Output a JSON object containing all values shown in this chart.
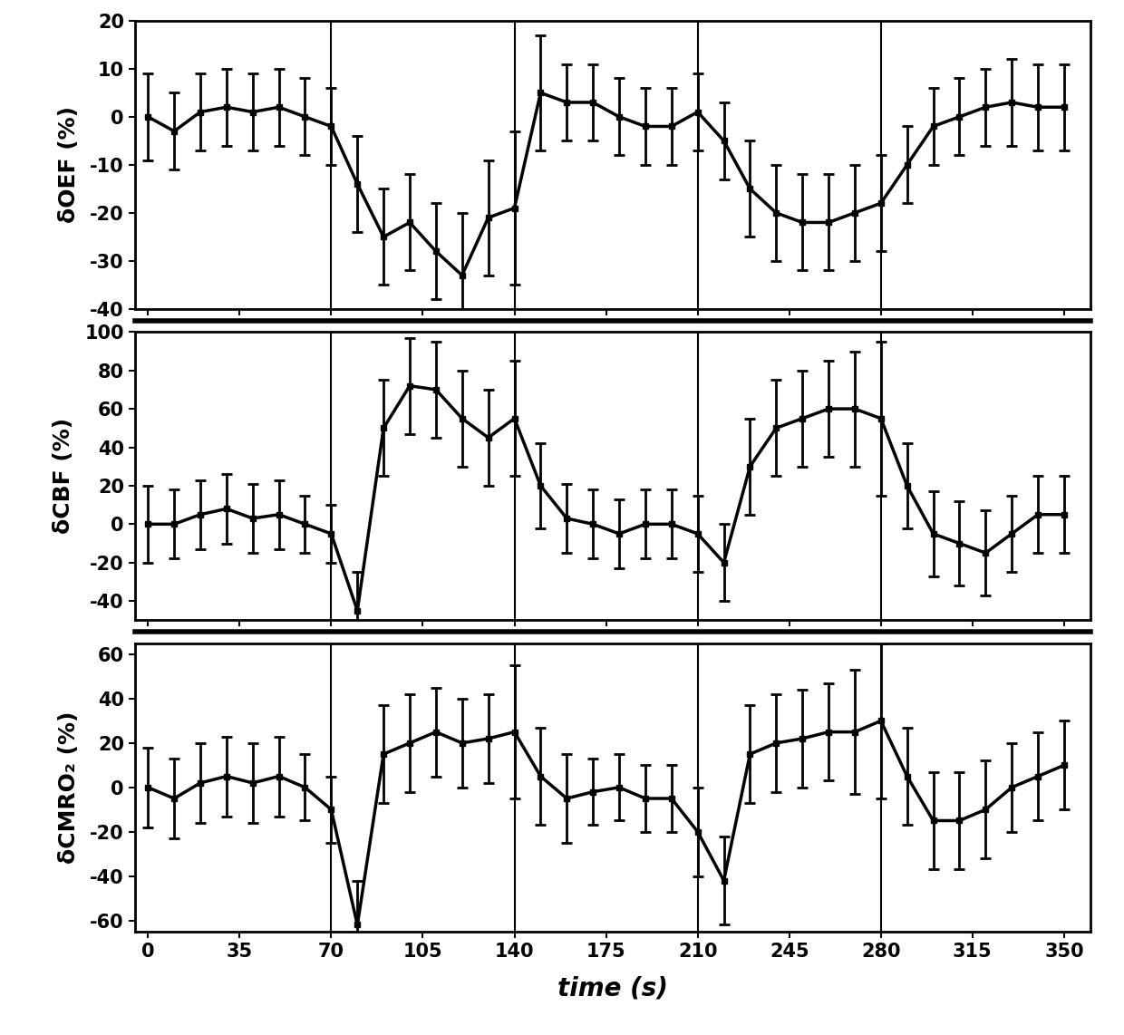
{
  "time": [
    0,
    10,
    20,
    30,
    40,
    50,
    60,
    70,
    80,
    90,
    100,
    110,
    120,
    130,
    140,
    150,
    160,
    170,
    180,
    190,
    200,
    210,
    220,
    230,
    240,
    250,
    260,
    270,
    280,
    290,
    300,
    310,
    320,
    330,
    340,
    350
  ],
  "oef_y": [
    0,
    -3,
    1,
    2,
    1,
    2,
    0,
    -2,
    -14,
    -25,
    -22,
    -28,
    -33,
    -21,
    -19,
    5,
    3,
    3,
    0,
    -2,
    -2,
    1,
    -5,
    -15,
    -20,
    -22,
    -22,
    -20,
    -18,
    -10,
    -2,
    0,
    2,
    3,
    2,
    2
  ],
  "oef_err": [
    9,
    8,
    8,
    8,
    8,
    8,
    8,
    8,
    10,
    10,
    10,
    10,
    13,
    12,
    16,
    12,
    8,
    8,
    8,
    8,
    8,
    8,
    8,
    10,
    10,
    10,
    10,
    10,
    10,
    8,
    8,
    8,
    8,
    9,
    9,
    9
  ],
  "cbf_y": [
    0,
    0,
    5,
    8,
    3,
    5,
    0,
    -5,
    -45,
    50,
    72,
    70,
    55,
    45,
    55,
    20,
    3,
    0,
    -5,
    0,
    0,
    -5,
    -20,
    30,
    50,
    55,
    60,
    60,
    55,
    20,
    -5,
    -10,
    -15,
    -5,
    5,
    5
  ],
  "cbf_err": [
    20,
    18,
    18,
    18,
    18,
    18,
    15,
    15,
    20,
    25,
    25,
    25,
    25,
    25,
    30,
    22,
    18,
    18,
    18,
    18,
    18,
    20,
    20,
    25,
    25,
    25,
    25,
    30,
    40,
    22,
    22,
    22,
    22,
    20,
    20,
    20
  ],
  "cmro2_y": [
    0,
    -5,
    2,
    5,
    2,
    5,
    0,
    -10,
    -62,
    15,
    20,
    25,
    20,
    22,
    25,
    5,
    -5,
    -2,
    0,
    -5,
    -5,
    -20,
    -42,
    15,
    20,
    22,
    25,
    25,
    30,
    5,
    -15,
    -15,
    -10,
    0,
    5,
    10
  ],
  "cmro2_err": [
    18,
    18,
    18,
    18,
    18,
    18,
    15,
    15,
    20,
    22,
    22,
    20,
    20,
    20,
    30,
    22,
    20,
    15,
    15,
    15,
    15,
    20,
    20,
    22,
    22,
    22,
    22,
    28,
    35,
    22,
    22,
    22,
    22,
    20,
    20,
    20
  ],
  "vlines": [
    70,
    140,
    210,
    280
  ],
  "oef_ylim": [
    -40,
    20
  ],
  "oef_yticks": [
    -40,
    -30,
    -20,
    -10,
    0,
    10,
    20
  ],
  "cbf_ylim": [
    -50,
    100
  ],
  "cbf_yticks": [
    -40,
    -20,
    0,
    20,
    40,
    60,
    80,
    100
  ],
  "cmro2_ylim": [
    -65,
    65
  ],
  "cmro2_yticks": [
    -60,
    -40,
    -20,
    0,
    20,
    40,
    60
  ],
  "xlabel": "time (s)",
  "oef_ylabel": "δOEF (%)",
  "cbf_ylabel": "δCBF (%)",
  "cmro2_ylabel": "δCMRO₂ (%)",
  "xticks": [
    0,
    35,
    70,
    105,
    140,
    175,
    210,
    245,
    280,
    315,
    350
  ],
  "xlim": [
    -5,
    360
  ],
  "separator_linewidth": 4.0,
  "separator_color": "#000000",
  "spine_linewidth": 2.0,
  "line_color": "#000000",
  "marker_size": 5,
  "line_width": 2.5,
  "cap_size": 4,
  "cap_thick": 2.0,
  "elinewidth": 2.0
}
